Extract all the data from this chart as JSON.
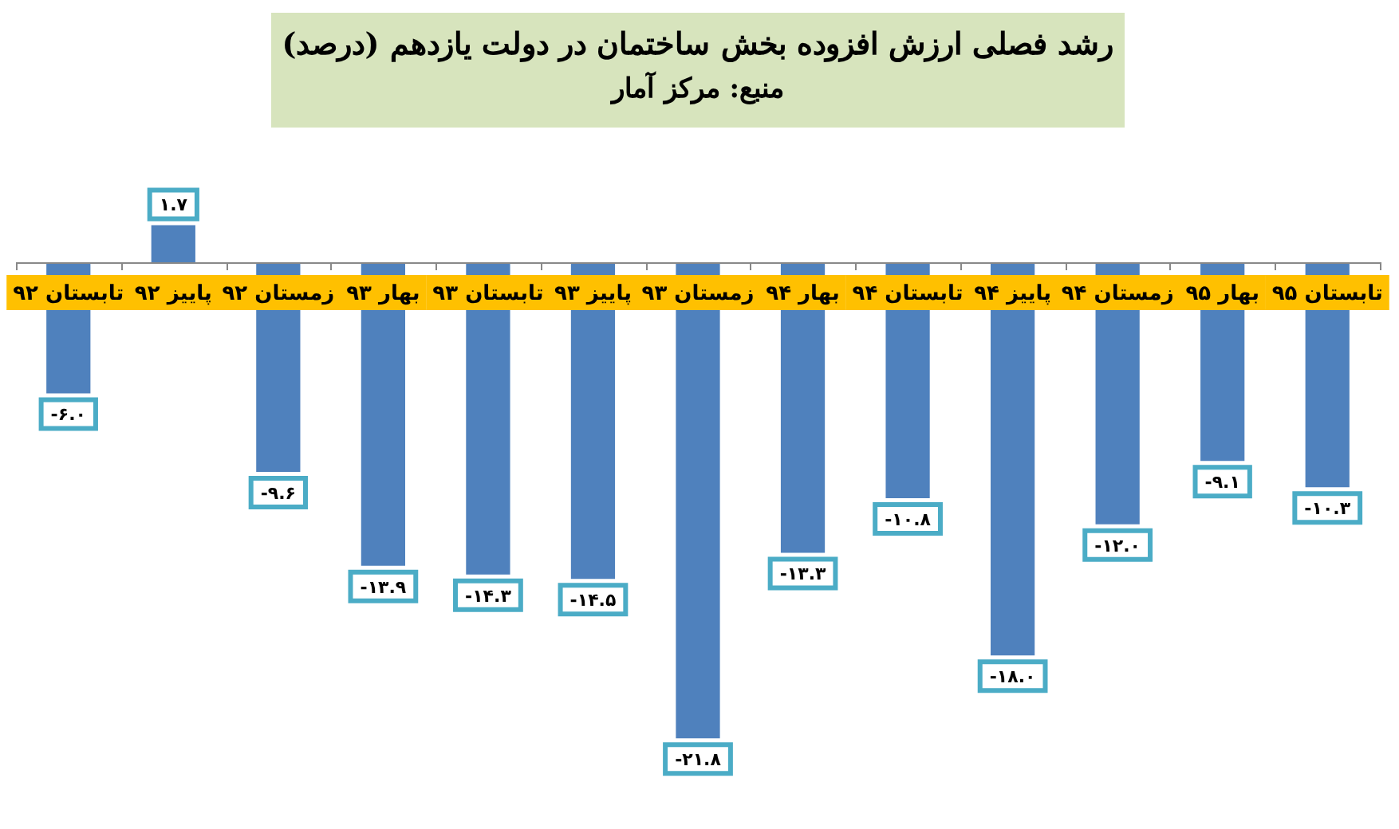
{
  "chart_data": {
    "type": "bar",
    "title": "رشد فصلی ارزش افزوده بخش ساختمان در دولت یازدهم (درصد)",
    "subtitle": "منبع: مرکز آمار",
    "categories": [
      "تابستان ۹۲",
      "پاییز ۹۲",
      "زمستان ۹۲",
      "بهار ۹۳",
      "تابستان ۹۳",
      "پاییز ۹۳",
      "زمستان ۹۳",
      "بهار ۹۴",
      "تابستان ۹۴",
      "پاییز ۹۴",
      "زمستان ۹۴",
      "بهار ۹۵",
      "تابستان ۹۵"
    ],
    "values": [
      -6.0,
      1.7,
      -9.6,
      -13.9,
      -14.3,
      -14.5,
      -21.8,
      -13.3,
      -10.8,
      -18.0,
      -12.0,
      -9.1,
      -10.3
    ],
    "value_labels": [
      "-۶.۰",
      "۱.۷",
      "-۹.۶",
      "-۱۳.۹",
      "-۱۴.۳",
      "-۱۴.۵",
      "-۲۱.۸",
      "-۱۳.۳",
      "-۱۰.۸",
      "-۱۸.۰",
      "-۱۲.۰",
      "-۹.۱",
      "-۱۰.۳"
    ],
    "color": "#4f81bd",
    "legend": false
  }
}
